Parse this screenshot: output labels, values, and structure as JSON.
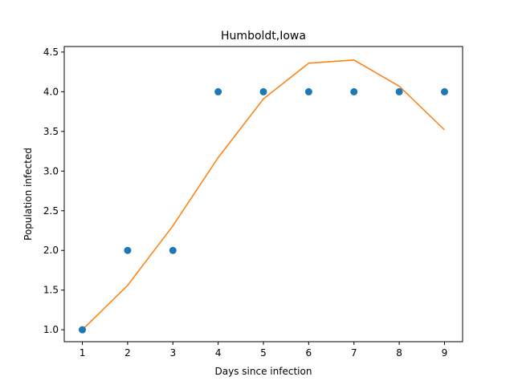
{
  "chart_data": {
    "type": "scatter",
    "title": "Humboldt,Iowa",
    "xlabel": "Days since infection",
    "ylabel": "Population infected",
    "xlim": [
      0.6,
      9.4
    ],
    "ylim": [
      0.85,
      4.57
    ],
    "xticks": [
      1,
      2,
      3,
      4,
      5,
      6,
      7,
      8,
      9
    ],
    "xtick_labels": [
      "1",
      "2",
      "3",
      "4",
      "5",
      "6",
      "7",
      "8",
      "9"
    ],
    "yticks": [
      1.0,
      1.5,
      2.0,
      2.5,
      3.0,
      3.5,
      4.0,
      4.5
    ],
    "ytick_labels": [
      "1.0",
      "1.5",
      "2.0",
      "2.5",
      "3.0",
      "3.5",
      "4.0",
      "4.5"
    ],
    "grid": false,
    "series": [
      {
        "type": "scatter",
        "color": "#1f77b4",
        "x": [
          1,
          2,
          3,
          4,
          5,
          6,
          7,
          8,
          9
        ],
        "y": [
          1,
          2,
          2,
          4,
          4,
          4,
          4,
          4,
          4
        ]
      },
      {
        "type": "line",
        "color": "#ff7f0e",
        "x": [
          1,
          2,
          3,
          4,
          5,
          6,
          7,
          8,
          9
        ],
        "y": [
          1.0,
          1.56,
          2.31,
          3.17,
          3.91,
          4.36,
          4.4,
          4.07,
          3.52
        ]
      }
    ]
  }
}
